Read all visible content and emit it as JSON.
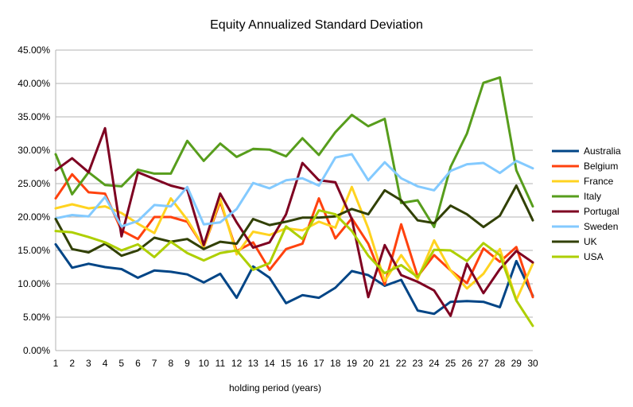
{
  "chart_data": {
    "type": "line",
    "title": "Equity Annualized Standard Deviation",
    "xlabel": "holding period (years)",
    "ylabel": "",
    "x": [
      1,
      2,
      3,
      4,
      5,
      6,
      7,
      8,
      9,
      10,
      11,
      12,
      13,
      14,
      15,
      16,
      17,
      18,
      19,
      20,
      21,
      22,
      23,
      24,
      25,
      26,
      27,
      28,
      29,
      30
    ],
    "ylim": [
      0,
      0.45
    ],
    "ytick_labels": [
      "0.00%",
      "5.00%",
      "10.00%",
      "15.00%",
      "20.00%",
      "25.00%",
      "30.00%",
      "35.00%",
      "40.00%",
      "45.00%"
    ],
    "grid": "horizontal",
    "legend_position": "right",
    "series": [
      {
        "name": "Australia",
        "color": "#004586",
        "values": [
          0.159,
          0.124,
          0.13,
          0.125,
          0.122,
          0.109,
          0.12,
          0.118,
          0.114,
          0.102,
          0.115,
          0.079,
          0.126,
          0.109,
          0.071,
          0.083,
          0.079,
          0.094,
          0.119,
          0.113,
          0.097,
          0.106,
          0.06,
          0.055,
          0.073,
          0.074,
          0.073,
          0.065,
          0.134,
          0.082
        ]
      },
      {
        "name": "Belgium",
        "color": "#ff420e",
        "values": [
          0.228,
          0.264,
          0.237,
          0.235,
          0.18,
          0.167,
          0.2,
          0.2,
          0.193,
          0.155,
          0.223,
          0.149,
          0.162,
          0.121,
          0.152,
          0.16,
          0.228,
          0.168,
          0.198,
          0.16,
          0.099,
          0.189,
          0.111,
          0.143,
          0.12,
          0.101,
          0.153,
          0.133,
          0.155,
          0.08
        ]
      },
      {
        "name": "France",
        "color": "#ffd320",
        "values": [
          0.213,
          0.219,
          0.213,
          0.216,
          0.206,
          0.19,
          0.176,
          0.228,
          0.196,
          0.155,
          0.227,
          0.144,
          0.178,
          0.173,
          0.183,
          0.18,
          0.193,
          0.184,
          0.245,
          0.183,
          0.104,
          0.143,
          0.107,
          0.165,
          0.12,
          0.093,
          0.115,
          0.152,
          0.076,
          0.13
        ]
      },
      {
        "name": "Italy",
        "color": "#579d1c",
        "values": [
          0.294,
          0.234,
          0.267,
          0.248,
          0.246,
          0.271,
          0.265,
          0.265,
          0.314,
          0.284,
          0.31,
          0.29,
          0.302,
          0.301,
          0.291,
          0.318,
          0.293,
          0.327,
          0.353,
          0.336,
          0.347,
          0.221,
          0.225,
          0.185,
          0.275,
          0.325,
          0.401,
          0.409,
          0.27,
          0.216
        ]
      },
      {
        "name": "Portugal",
        "color": "#7e0021",
        "values": [
          0.27,
          0.288,
          0.267,
          0.333,
          0.171,
          0.267,
          0.257,
          0.247,
          0.241,
          0.158,
          0.235,
          0.192,
          0.154,
          0.162,
          0.204,
          0.281,
          0.255,
          0.252,
          0.197,
          0.08,
          0.158,
          0.113,
          0.103,
          0.09,
          0.052,
          0.13,
          0.086,
          0.122,
          0.149,
          0.132
        ]
      },
      {
        "name": "Sweden",
        "color": "#83caff",
        "values": [
          0.198,
          0.203,
          0.201,
          0.23,
          0.186,
          0.194,
          0.218,
          0.216,
          0.245,
          0.189,
          0.192,
          0.212,
          0.251,
          0.243,
          0.255,
          0.258,
          0.247,
          0.289,
          0.294,
          0.255,
          0.282,
          0.258,
          0.246,
          0.24,
          0.269,
          0.279,
          0.281,
          0.266,
          0.284,
          0.273
        ]
      },
      {
        "name": "UK",
        "color": "#314004",
        "values": [
          0.197,
          0.152,
          0.147,
          0.16,
          0.142,
          0.15,
          0.169,
          0.163,
          0.167,
          0.152,
          0.163,
          0.16,
          0.197,
          0.188,
          0.193,
          0.199,
          0.199,
          0.201,
          0.212,
          0.204,
          0.24,
          0.225,
          0.195,
          0.191,
          0.217,
          0.204,
          0.185,
          0.202,
          0.247,
          0.195
        ]
      },
      {
        "name": "USA",
        "color": "#aecf00",
        "values": [
          0.179,
          0.177,
          0.17,
          0.162,
          0.15,
          0.159,
          0.14,
          0.163,
          0.146,
          0.135,
          0.146,
          0.15,
          0.121,
          0.131,
          0.186,
          0.167,
          0.21,
          0.204,
          0.179,
          0.142,
          0.116,
          0.128,
          0.11,
          0.151,
          0.15,
          0.134,
          0.161,
          0.143,
          0.075,
          0.037
        ]
      }
    ]
  }
}
